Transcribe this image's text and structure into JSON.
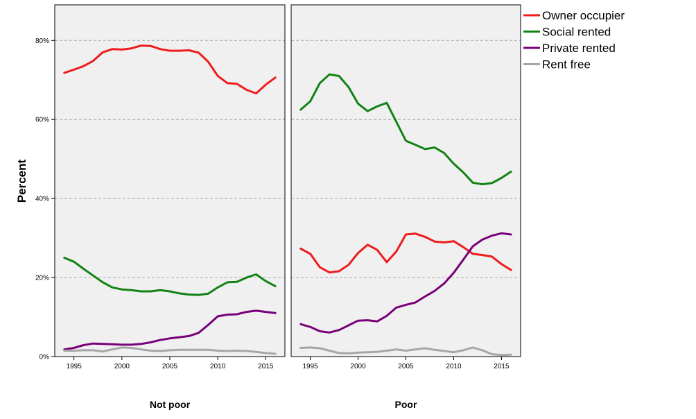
{
  "chart_data": {
    "type": "line",
    "ylabel": "Percent",
    "ylim": [
      0,
      89
    ],
    "xlim": [
      1993,
      2017
    ],
    "y_ticks": [
      {
        "value": 0,
        "label": "0%"
      },
      {
        "value": 20,
        "label": "20%"
      },
      {
        "value": 40,
        "label": "40%"
      },
      {
        "value": 60,
        "label": "60%"
      },
      {
        "value": 80,
        "label": "80%"
      }
    ],
    "x_ticks": [
      {
        "value": 1995,
        "label": "1995"
      },
      {
        "value": 2000,
        "label": "2000"
      },
      {
        "value": 2005,
        "label": "2005"
      },
      {
        "value": 2010,
        "label": "2010"
      },
      {
        "value": 2015,
        "label": "2015"
      }
    ],
    "grid": "horizontal dashed",
    "legend_position": "right",
    "x": [
      1994,
      1995,
      1996,
      1997,
      1998,
      1999,
      2000,
      2001,
      2002,
      2003,
      2004,
      2005,
      2006,
      2007,
      2008,
      2009,
      2010,
      2011,
      2012,
      2013,
      2014,
      2015,
      2016
    ],
    "legend": [
      {
        "name": "Owner occupier",
        "color": "#ee1c1c"
      },
      {
        "name": "Social rented",
        "color": "#128212"
      },
      {
        "name": "Private rented",
        "color": "#780078"
      },
      {
        "name": "Rent free",
        "color": "#a6a6a6"
      }
    ],
    "panels": [
      {
        "label": "Not poor",
        "series": [
          {
            "name": "Owner occupier",
            "color": "#ee1c1c",
            "values": [
              71.8,
              72.6,
              73.5,
              74.8,
              77.0,
              77.8,
              77.7,
              78.0,
              78.7,
              78.6,
              77.8,
              77.4,
              77.4,
              77.5,
              76.9,
              74.6,
              71.0,
              69.2,
              69.0,
              67.5,
              66.6,
              68.8,
              70.6
            ]
          },
          {
            "name": "Social rented",
            "color": "#128212",
            "values": [
              25.0,
              24.0,
              22.2,
              20.5,
              18.8,
              17.5,
              17.0,
              16.8,
              16.5,
              16.5,
              16.8,
              16.5,
              16.0,
              15.7,
              15.6,
              15.9,
              17.5,
              18.8,
              18.9,
              20.0,
              20.8,
              19.1,
              17.8
            ]
          },
          {
            "name": "Private rented",
            "color": "#780078",
            "values": [
              1.8,
              2.2,
              2.9,
              3.3,
              3.2,
              3.1,
              3.0,
              3.0,
              3.2,
              3.6,
              4.2,
              4.6,
              4.9,
              5.2,
              6.0,
              8.0,
              10.2,
              10.6,
              10.7,
              11.3,
              11.6,
              11.3,
              11.0
            ]
          },
          {
            "name": "Rent free",
            "color": "#a6a6a6",
            "values": [
              1.5,
              1.5,
              1.6,
              1.6,
              1.3,
              1.8,
              2.3,
              2.2,
              1.8,
              1.5,
              1.4,
              1.6,
              1.7,
              1.7,
              1.7,
              1.7,
              1.5,
              1.4,
              1.5,
              1.4,
              1.2,
              0.9,
              0.7
            ]
          }
        ]
      },
      {
        "label": "Poor",
        "series": [
          {
            "name": "Owner occupier",
            "color": "#ee1c1c",
            "values": [
              27.3,
              26.0,
              22.6,
              21.3,
              21.6,
              23.2,
              26.2,
              28.3,
              27.0,
              23.9,
              26.6,
              30.9,
              31.1,
              30.3,
              29.1,
              28.9,
              29.2,
              27.7,
              26.0,
              25.7,
              25.3,
              23.4,
              21.9
            ]
          },
          {
            "name": "Social rented",
            "color": "#128212",
            "values": [
              62.5,
              64.6,
              69.2,
              71.4,
              71.0,
              68.2,
              64.0,
              62.1,
              63.3,
              64.2,
              59.4,
              54.6,
              53.6,
              52.5,
              52.9,
              51.5,
              48.8,
              46.6,
              44.0,
              43.6,
              43.9,
              45.2,
              46.8
            ]
          },
          {
            "name": "Private rented",
            "color": "#780078",
            "values": [
              8.2,
              7.5,
              6.4,
              6.1,
              6.7,
              7.9,
              9.1,
              9.2,
              8.9,
              10.3,
              12.4,
              13.1,
              13.7,
              15.2,
              16.6,
              18.5,
              21.2,
              24.5,
              27.9,
              29.6,
              30.6,
              31.2,
              30.9
            ]
          },
          {
            "name": "Rent free",
            "color": "#a6a6a6",
            "values": [
              2.2,
              2.3,
              2.1,
              1.5,
              0.9,
              0.8,
              1.0,
              1.1,
              1.2,
              1.5,
              1.8,
              1.5,
              1.8,
              2.1,
              1.7,
              1.4,
              1.1,
              1.6,
              2.3,
              1.6,
              0.6,
              0.4,
              0.5
            ]
          }
        ]
      }
    ]
  }
}
